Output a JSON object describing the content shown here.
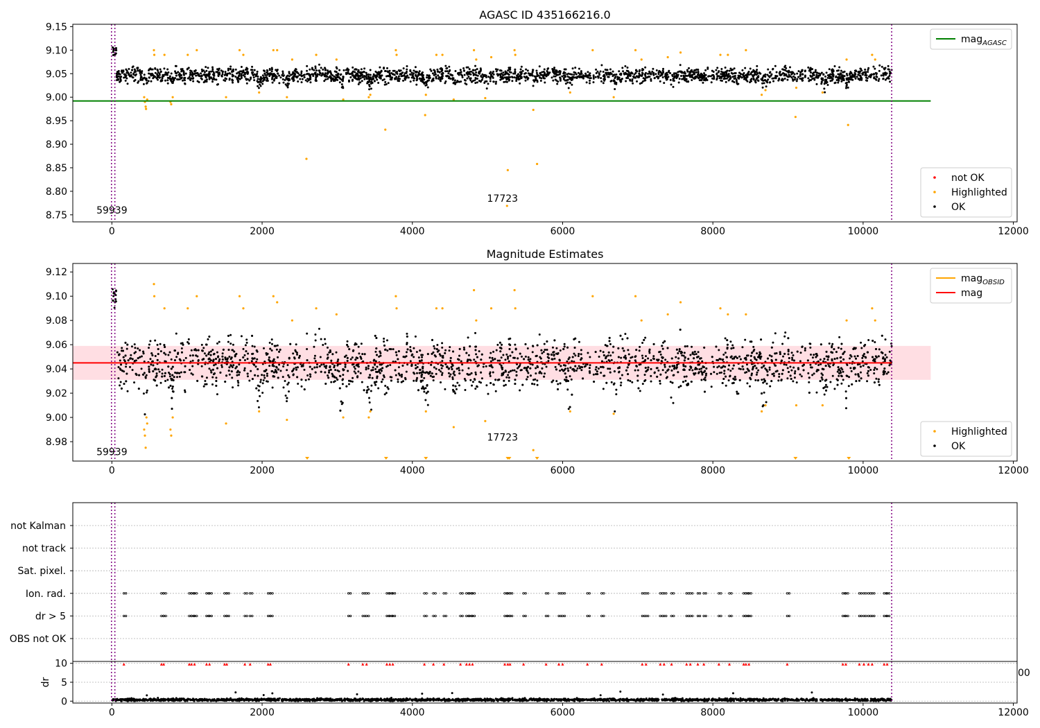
{
  "chart_data": [
    {
      "type": "scatter",
      "title": "AGASC ID 435166216.0",
      "xlim": [
        -520,
        12050
      ],
      "ylim": [
        8.735,
        9.155
      ],
      "xticks": [
        0,
        2000,
        4000,
        6000,
        8000,
        10000,
        12000
      ],
      "yticks": [
        8.75,
        8.8,
        8.85,
        8.9,
        8.95,
        9.0,
        9.05,
        9.1,
        9.15
      ],
      "ytick_labels": [
        "8.75",
        "8.80",
        "8.85",
        "8.90",
        "8.95",
        "9.00",
        "9.05",
        "9.10",
        "9.15"
      ],
      "grid": false,
      "hline": {
        "name": "mag_AGASC",
        "value": 8.992,
        "x_end": 10900,
        "color": "#008000"
      },
      "vlines": [
        -5,
        40,
        10380
      ],
      "annotations": [
        {
          "text": "59939",
          "x": 0,
          "y": 8.753
        },
        {
          "text": "17723",
          "x": 5200,
          "y": 8.778
        }
      ],
      "legend_upper": {
        "placement": "top-right",
        "entries": [
          {
            "label": "mag",
            "sub": "AGASC",
            "color": "#008000",
            "kind": "line"
          }
        ]
      },
      "legend_lower": {
        "placement": "bottom-right",
        "entries": [
          {
            "label": "not OK",
            "color": "#ff0000",
            "kind": "dot"
          },
          {
            "label": "Highlighted",
            "color": "#ffa500",
            "kind": "dot"
          },
          {
            "label": "OK",
            "color": "#000000",
            "kind": "dot"
          }
        ]
      },
      "series": [
        {
          "name": "OK",
          "color": "#000000",
          "baseline": 9.047,
          "spread": 0.011,
          "x_range": [
            10,
            10380
          ],
          "n": 2400
        },
        {
          "name": "Highlighted",
          "color": "#ffa500",
          "points": [
            [
              430,
              9.0
            ],
            [
              440,
              8.99
            ],
            [
              450,
              8.98
            ],
            [
              455,
              8.975
            ],
            [
              470,
              8.995
            ],
            [
              560,
              9.1
            ],
            [
              565,
              9.09
            ],
            [
              700,
              9.09
            ],
            [
              780,
              8.99
            ],
            [
              790,
              8.985
            ],
            [
              810,
              9.0
            ],
            [
              1010,
              9.09
            ],
            [
              1130,
              9.1
            ],
            [
              1520,
              9.0
            ],
            [
              1700,
              9.1
            ],
            [
              1750,
              9.09
            ],
            [
              1960,
              9.01
            ],
            [
              2150,
              9.1
            ],
            [
              2200,
              9.1
            ],
            [
              2330,
              9.0
            ],
            [
              2400,
              9.08
            ],
            [
              2720,
              9.09
            ],
            [
              2990,
              9.08
            ],
            [
              3080,
              8.995
            ],
            [
              3420,
              9.0
            ],
            [
              3440,
              9.005
            ],
            [
              3780,
              9.1
            ],
            [
              3790,
              9.09
            ],
            [
              4180,
              9.005
            ],
            [
              4320,
              9.09
            ],
            [
              4400,
              9.09
            ],
            [
              4550,
              8.995
            ],
            [
              4820,
              9.1
            ],
            [
              4850,
              9.08
            ],
            [
              4970,
              8.998
            ],
            [
              5050,
              9.085
            ],
            [
              5360,
              9.1
            ],
            [
              5370,
              9.09
            ],
            [
              6100,
              9.01
            ],
            [
              6400,
              9.1
            ],
            [
              6680,
              9.0
            ],
            [
              6970,
              9.1
            ],
            [
              7050,
              9.08
            ],
            [
              7400,
              9.085
            ],
            [
              7570,
              9.095
            ],
            [
              8100,
              9.09
            ],
            [
              8200,
              9.09
            ],
            [
              8440,
              9.1
            ],
            [
              8650,
              9.005
            ],
            [
              8700,
              9.015
            ],
            [
              9110,
              9.02
            ],
            [
              9460,
              9.01
            ],
            [
              9780,
              9.08
            ],
            [
              10120,
              9.09
            ],
            [
              10160,
              9.08
            ],
            [
              2590,
              8.869
            ],
            [
              3640,
              8.931
            ],
            [
              4170,
              8.962
            ],
            [
              5270,
              8.845
            ],
            [
              5610,
              8.973
            ],
            [
              5660,
              8.858
            ],
            [
              9100,
              8.958
            ],
            [
              9800,
              8.941
            ],
            [
              5260,
              8.769
            ]
          ]
        },
        {
          "name": "not OK",
          "color": "#ff0000",
          "points": []
        }
      ]
    },
    {
      "type": "scatter",
      "title": "Magnitude Estimates",
      "xlim": [
        -520,
        12050
      ],
      "ylim": [
        8.964,
        9.127
      ],
      "xticks": [
        0,
        2000,
        4000,
        6000,
        8000,
        10000,
        12000
      ],
      "yticks": [
        8.98,
        9.0,
        9.02,
        9.04,
        9.06,
        9.08,
        9.1,
        9.12
      ],
      "ytick_labels": [
        "8.98",
        "9.00",
        "9.02",
        "9.04",
        "9.06",
        "9.08",
        "9.10",
        "9.12"
      ],
      "grid": false,
      "hline": {
        "name": "mag",
        "value": 9.045,
        "x_end": 10380,
        "color": "#ff0000"
      },
      "band": {
        "low": 9.031,
        "high": 9.059,
        "x_end": 10900,
        "color": "#ffb6c1"
      },
      "vlines": [
        -5,
        40,
        10380
      ],
      "annotations": [
        {
          "text": "59939",
          "x": 0,
          "y": 8.969
        },
        {
          "text": "17723",
          "x": 5200,
          "y": 8.981
        }
      ],
      "legend_upper": {
        "placement": "top-right",
        "entries": [
          {
            "label": "mag",
            "sub": "OBSID",
            "color": "#ffa500",
            "kind": "line"
          },
          {
            "label": "mag",
            "sub": "",
            "color": "#ff0000",
            "kind": "line"
          }
        ]
      },
      "legend_lower": {
        "placement": "bottom-right",
        "entries": [
          {
            "label": "Highlighted",
            "color": "#ffa500",
            "kind": "dot"
          },
          {
            "label": "OK",
            "color": "#000000",
            "kind": "dot"
          }
        ]
      },
      "series": [
        {
          "name": "OK",
          "color": "#000000",
          "baseline": 9.045,
          "spread": 0.014,
          "x_range": [
            10,
            10380
          ],
          "n": 2800
        },
        {
          "name": "Highlighted",
          "color": "#ffa500",
          "points": [
            [
              430,
              8.99
            ],
            [
              440,
              8.985
            ],
            [
              450,
              8.975
            ],
            [
              460,
              9.0
            ],
            [
              470,
              8.995
            ],
            [
              560,
              9.11
            ],
            [
              565,
              9.1
            ],
            [
              700,
              9.09
            ],
            [
              780,
              8.99
            ],
            [
              790,
              8.985
            ],
            [
              810,
              9.0
            ],
            [
              1010,
              9.09
            ],
            [
              1130,
              9.1
            ],
            [
              1520,
              8.995
            ],
            [
              1700,
              9.1
            ],
            [
              1750,
              9.09
            ],
            [
              1960,
              9.005
            ],
            [
              2150,
              9.1
            ],
            [
              2200,
              9.095
            ],
            [
              2330,
              8.998
            ],
            [
              2400,
              9.08
            ],
            [
              2720,
              9.09
            ],
            [
              2990,
              9.085
            ],
            [
              3080,
              9.0
            ],
            [
              3420,
              9.0
            ],
            [
              3440,
              9.005
            ],
            [
              3780,
              9.1
            ],
            [
              3790,
              9.09
            ],
            [
              4180,
              9.005
            ],
            [
              4320,
              9.09
            ],
            [
              4400,
              9.09
            ],
            [
              4550,
              8.992
            ],
            [
              4820,
              9.105
            ],
            [
              4850,
              9.08
            ],
            [
              4970,
              8.997
            ],
            [
              5050,
              9.09
            ],
            [
              5360,
              9.105
            ],
            [
              5370,
              9.09
            ],
            [
              6100,
              9.005
            ],
            [
              6400,
              9.1
            ],
            [
              6680,
              9.003
            ],
            [
              6970,
              9.1
            ],
            [
              7050,
              9.08
            ],
            [
              7400,
              9.085
            ],
            [
              7570,
              9.095
            ],
            [
              8100,
              9.09
            ],
            [
              8200,
              9.085
            ],
            [
              8440,
              9.085
            ],
            [
              8650,
              9.005
            ],
            [
              8700,
              9.01
            ],
            [
              9110,
              9.01
            ],
            [
              9460,
              9.01
            ],
            [
              9780,
              9.08
            ],
            [
              10120,
              9.09
            ],
            [
              10160,
              9.08
            ],
            [
              5610,
              8.973
            ]
          ]
        }
      ],
      "offscale_markers": [
        2600,
        3650,
        4180,
        5270,
        5290,
        5660,
        9100,
        9810
      ]
    },
    {
      "type": "scatter",
      "title": "",
      "xlim": [
        -520,
        12050
      ],
      "category_axis": [
        "not Kalman",
        "not track",
        "Sat. pixel.",
        "Ion. rad.",
        "dr > 5",
        "OBS not OK"
      ],
      "grid": true,
      "vlines": [
        -5,
        40,
        10380
      ],
      "flag_x": [
        160,
        660,
        690,
        1030,
        1060,
        1100,
        1260,
        1300,
        1500,
        1530,
        1770,
        1840,
        2080,
        2110,
        3150,
        3340,
        3390,
        3660,
        3700,
        3740,
        4160,
        4280,
        4420,
        4640,
        4720,
        4760,
        4800,
        5230,
        5270,
        5300,
        5480,
        5780,
        5950,
        6000,
        6330,
        6520,
        7060,
        7110,
        7300,
        7350,
        7450,
        7650,
        7700,
        7800,
        7880,
        8080,
        8220,
        8410,
        8440,
        8480,
        8990,
        9730,
        9770,
        9950,
        10010,
        10070,
        10120,
        10280,
        10320
      ],
      "flag_rows": [
        "Ion. rad.",
        "dr > 5"
      ]
    },
    {
      "type": "scatter",
      "title": "",
      "ylabel": "dr",
      "xlim": [
        -520,
        12050
      ],
      "ylim": [
        -0.5,
        10.5
      ],
      "xticks": [
        0,
        2000,
        4000,
        6000,
        8000,
        10000,
        12000
      ],
      "yticks": [
        0,
        5,
        10
      ],
      "ytick_labels": [
        "0",
        "5",
        "10"
      ],
      "grid": true,
      "vlines": [
        -5,
        40,
        10380
      ],
      "clipped_label": "00",
      "series": [
        {
          "name": "dr",
          "color": "#000000",
          "baseline": 0.35,
          "spread": 0.25,
          "x_range": [
            10,
            10380
          ],
          "n": 2200
        },
        {
          "name": "dr > 5 (clipped)",
          "color": "#ff0000",
          "value": 9.8
        }
      ]
    }
  ]
}
